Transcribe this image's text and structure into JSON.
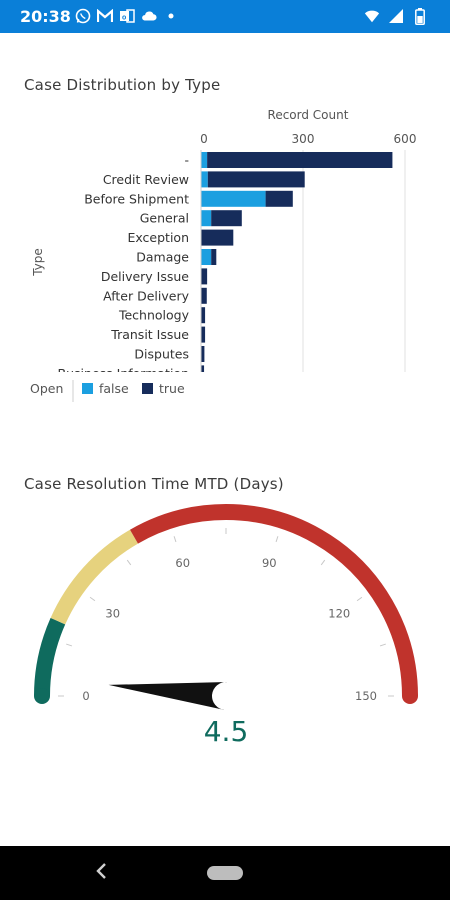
{
  "status_bar": {
    "time": "20:38",
    "left_icons": [
      "whatsapp-icon",
      "gmail-icon",
      "office-icon",
      "cloud-icon",
      "dot-icon"
    ],
    "right_icons": [
      "wifi-icon",
      "signal-icon",
      "battery-icon"
    ],
    "color": "#0a7fd8"
  },
  "bar_chart": {
    "title": "Case Distribution by Type",
    "chart_data": {
      "type": "bar",
      "orientation": "horizontal",
      "stacked": true,
      "title": "Case Distribution by Type",
      "xlabel": "Record Count",
      "ylabel": "Type",
      "xlim": [
        0,
        600
      ],
      "x_ticks": [
        "0",
        "300",
        "600"
      ],
      "categories": [
        "-",
        "Credit Review",
        "Before Shipment",
        "General",
        "Exception",
        "Damage",
        "Delivery Issue",
        "After Delivery",
        "Technology",
        "Transit Issue",
        "Disputes",
        "Business Information"
      ],
      "series": [
        {
          "name": "false",
          "color": "#1b9fe0",
          "values": [
            18,
            20,
            190,
            30,
            0,
            30,
            0,
            0,
            0,
            0,
            0,
            0
          ]
        },
        {
          "name": "true",
          "color": "#162c5b",
          "values": [
            545,
            285,
            80,
            90,
            95,
            15,
            18,
            17,
            12,
            12,
            10,
            9
          ]
        }
      ],
      "legend": {
        "title": "Open",
        "position": "bottom-left",
        "entries": [
          "false",
          "true"
        ]
      }
    }
  },
  "gauge_chart": {
    "title": "Case Resolution Time MTD (Days)",
    "chart_data": {
      "type": "gauge",
      "title": "Case Resolution Time MTD (Days)",
      "min": 0,
      "max": 150,
      "value": 4.5,
      "value_label": "4.5",
      "tick_labels": [
        "0",
        "30",
        "60",
        "90",
        "120",
        "150"
      ],
      "bands": [
        {
          "from": 0,
          "to": 20,
          "color": "#0f6b5e"
        },
        {
          "from": 20,
          "to": 50,
          "color": "#e6d27e"
        },
        {
          "from": 50,
          "to": 150,
          "color": "#c0332c"
        }
      ],
      "value_color": "#0f6b5e"
    }
  },
  "nav_bar": {
    "back_icon": "back-chevron-icon",
    "home_icon": "home-pill-icon"
  }
}
